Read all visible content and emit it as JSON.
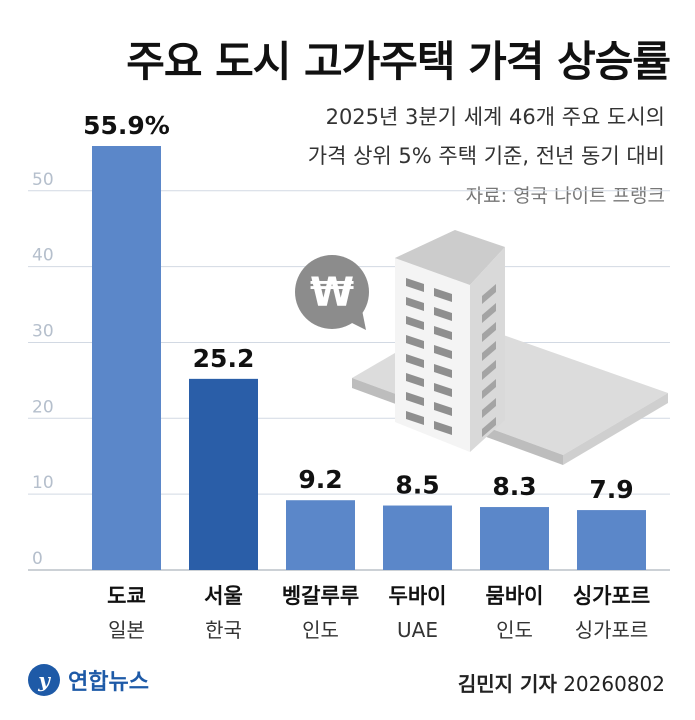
{
  "title": "주요 도시 고가주택 가격 상승률",
  "subtitle_line1": "2025년 3분기 세계 46개 주요 도시의",
  "subtitle_line2": "가격 상위 5% 주택 기준, 전년 동기 대비",
  "source": "자료: 영국 나이트 프랭크",
  "footer": {
    "logo_text": "연합뉴스",
    "reporter": "김민지 기자",
    "date": "20260802"
  },
  "icon": "won-speech-bubble-and-apartment-building-icon",
  "colors": {
    "bar": "#5b87c9",
    "highlight_bar": "#2a5ea8",
    "grid": "#d2d9e3"
  },
  "chart_data": {
    "type": "bar",
    "categories": [
      "도쿄",
      "서울",
      "벵갈루루",
      "두바이",
      "뭄바이",
      "싱가포르"
    ],
    "countries": [
      "일본",
      "한국",
      "인도",
      "UAE",
      "인도",
      "싱가포르"
    ],
    "values": [
      55.9,
      25.2,
      9.2,
      8.5,
      8.3,
      7.9
    ],
    "data_labels": [
      "55.9%",
      "25.2",
      "9.2",
      "8.5",
      "8.3",
      "7.9"
    ],
    "highlight": "서울",
    "yticks": [
      0,
      10,
      20,
      30,
      40,
      50
    ],
    "ylim": [
      0,
      55.9
    ],
    "grid": true
  }
}
